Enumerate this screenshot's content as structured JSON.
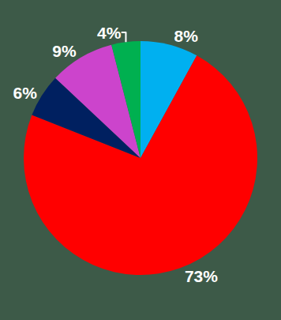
{
  "chart_data": {
    "type": "pie",
    "values": [
      8,
      73,
      6,
      9,
      4
    ],
    "value_labels": [
      "8%",
      "73%",
      "6%",
      "9%",
      "4%"
    ],
    "colors": [
      "#00b0f0",
      "#ff0000",
      "#002060",
      "#cc44cc",
      "#00b050"
    ],
    "data_labels": true
  }
}
